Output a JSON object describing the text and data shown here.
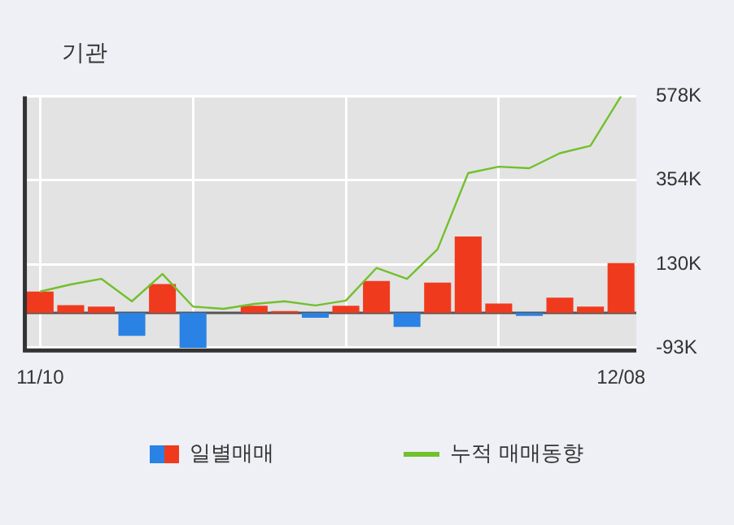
{
  "chart_data": {
    "type": "bar",
    "title": "기관",
    "categories": [
      "11/10",
      null,
      null,
      null,
      null,
      null,
      null,
      null,
      null,
      null,
      null,
      null,
      null,
      null,
      null,
      null,
      null,
      null,
      null,
      "12/08"
    ],
    "series": [
      {
        "name": "일별매매",
        "colors": [
          "#f03a1e",
          "#f03a1e",
          "#f03a1e",
          "#2a82e4",
          "#f03a1e",
          "#2a82e4",
          "#f03a1e",
          "#f03a1e",
          "#f03a1e",
          "#2a82e4",
          "#f03a1e",
          "#f03a1e",
          "#2a82e4",
          "#f03a1e",
          "#f03a1e",
          "#f03a1e",
          "#2a82e4",
          "#f03a1e",
          "#f03a1e",
          "#f03a1e"
        ],
        "values": [
          57000,
          21000,
          17000,
          -61000,
          77000,
          -93000,
          0,
          19000,
          5000,
          -13000,
          19000,
          85000,
          -37000,
          81000,
          204000,
          25000,
          -8000,
          41000,
          17000,
          133000
        ]
      },
      {
        "name": "누적 매매동향",
        "type": "line",
        "color": "#72c02c",
        "values": [
          57000,
          76000,
          91000,
          31000,
          104000,
          17000,
          11000,
          24000,
          31000,
          20000,
          33000,
          120000,
          91000,
          170000,
          373000,
          390000,
          386000,
          426000,
          446000,
          578000
        ]
      }
    ],
    "ylim": [
      -100000,
      578000
    ],
    "yticks": [
      {
        "value": 578000,
        "label": "578K"
      },
      {
        "value": 354000,
        "label": "354K"
      },
      {
        "value": 130000,
        "label": "130K"
      },
      {
        "value": -93000,
        "label": "-93K"
      }
    ],
    "grid": true,
    "legend": "bottom"
  }
}
